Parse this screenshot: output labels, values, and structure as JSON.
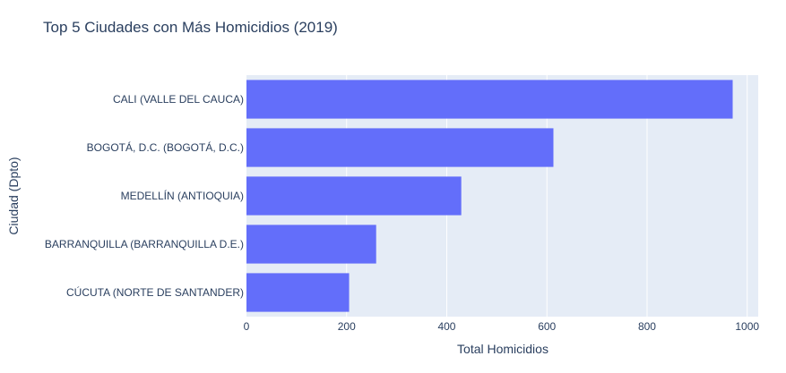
{
  "chart_data": {
    "type": "bar",
    "orientation": "horizontal",
    "title": "Top 5 Ciudades con Más Homicidios (2019)",
    "xlabel": "Total Homicidios",
    "ylabel": "Ciudad (Dpto)",
    "categories": [
      "CALI (VALLE DEL CAUCA)",
      "BOGOTÁ, D.C. (BOGOTÁ, D.C.)",
      "MEDELLÍN (ANTIOQUIA)",
      "BARRANQUILLA (BARRANQUILLA D.E.)",
      "CÚCUTA (NORTE DE SANTANDER)"
    ],
    "values": [
      971,
      613,
      429,
      259,
      205
    ],
    "xlim": [
      0,
      1022
    ],
    "xticks": [
      0,
      200,
      400,
      600,
      800,
      1000
    ],
    "xtick_labels": [
      "0",
      "200",
      "400",
      "600",
      "800",
      "1000"
    ],
    "grid": true,
    "colors": {
      "bar": "#636efa",
      "plot_bg": "#e5ecf6",
      "grid": "#ffffff",
      "text": "#2a3f5f"
    }
  }
}
